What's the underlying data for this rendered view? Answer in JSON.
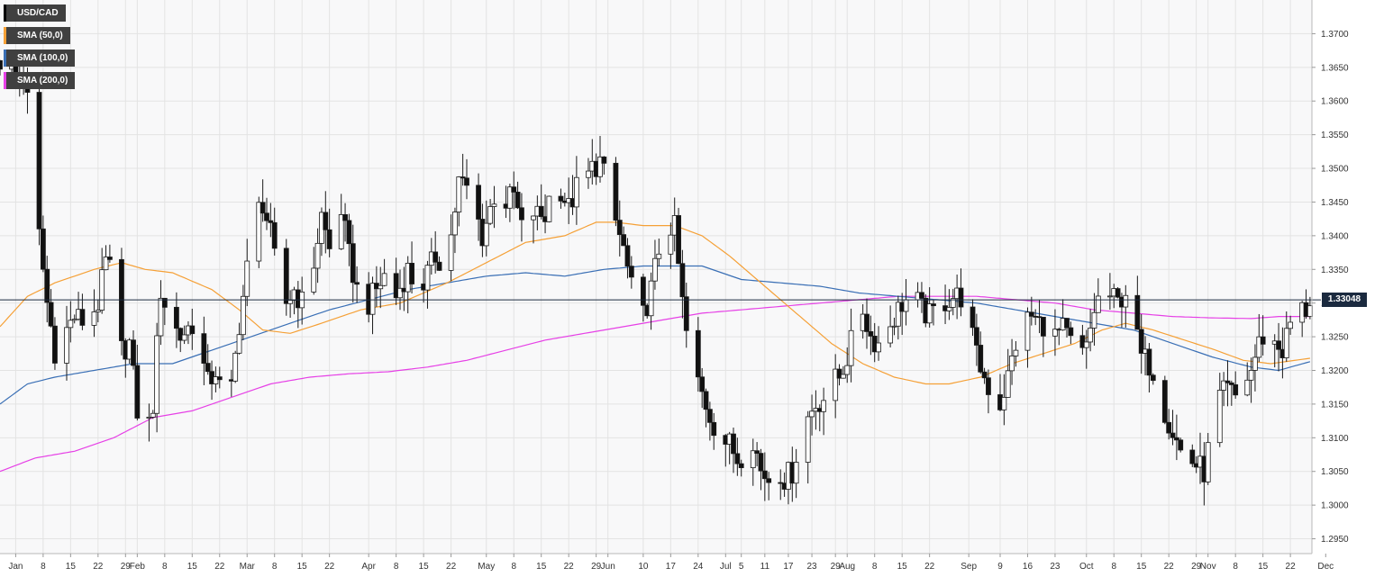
{
  "legend": [
    {
      "label": "USD/CAD",
      "color": "#000000"
    },
    {
      "label": "SMA (50,0)",
      "color": "#f5a036"
    },
    {
      "label": "SMA (100,0)",
      "color": "#3a6fb5"
    },
    {
      "label": "SMA (200,0)",
      "color": "#e640e6"
    }
  ],
  "last_price": "1.33048",
  "chart_data": {
    "type": "candlestick",
    "instrument": "USD/CAD",
    "y_ticks": [
      "1.2950",
      "1.3000",
      "1.3050",
      "1.3100",
      "1.3150",
      "1.3200",
      "1.3250",
      "1.3300",
      "1.3350",
      "1.3400",
      "1.3450",
      "1.3500",
      "1.3550",
      "1.3600",
      "1.3650",
      "1.3700"
    ],
    "x_ticks": [
      {
        "label": "Jan",
        "day": 0
      },
      {
        "label": "8",
        "day": 7
      },
      {
        "label": "15",
        "day": 14
      },
      {
        "label": "22",
        "day": 21
      },
      {
        "label": "29",
        "day": 28
      },
      {
        "label": "Feb",
        "day": 31
      },
      {
        "label": "8",
        "day": 38
      },
      {
        "label": "15",
        "day": 45
      },
      {
        "label": "22",
        "day": 52
      },
      {
        "label": "Mar",
        "day": 59
      },
      {
        "label": "8",
        "day": 66
      },
      {
        "label": "15",
        "day": 73
      },
      {
        "label": "22",
        "day": 80
      },
      {
        "label": "Apr",
        "day": 90
      },
      {
        "label": "8",
        "day": 97
      },
      {
        "label": "15",
        "day": 104
      },
      {
        "label": "22",
        "day": 111
      },
      {
        "label": "May",
        "day": 120
      },
      {
        "label": "8",
        "day": 127
      },
      {
        "label": "15",
        "day": 134
      },
      {
        "label": "22",
        "day": 141
      },
      {
        "label": "29",
        "day": 148
      },
      {
        "label": "Jun",
        "day": 151
      },
      {
        "label": "10",
        "day": 160
      },
      {
        "label": "17",
        "day": 167
      },
      {
        "label": "24",
        "day": 174
      },
      {
        "label": "Jul",
        "day": 181
      },
      {
        "label": "5",
        "day": 185
      },
      {
        "label": "11",
        "day": 191
      },
      {
        "label": "17",
        "day": 197
      },
      {
        "label": "23",
        "day": 203
      },
      {
        "label": "29",
        "day": 209
      },
      {
        "label": "Aug",
        "day": 212
      },
      {
        "label": "8",
        "day": 219
      },
      {
        "label": "15",
        "day": 226
      },
      {
        "label": "22",
        "day": 233
      },
      {
        "label": "Sep",
        "day": 243
      },
      {
        "label": "9",
        "day": 251
      },
      {
        "label": "16",
        "day": 258
      },
      {
        "label": "23",
        "day": 265
      },
      {
        "label": "Oct",
        "day": 273
      },
      {
        "label": "8",
        "day": 280
      },
      {
        "label": "15",
        "day": 287
      },
      {
        "label": "22",
        "day": 294
      },
      {
        "label": "29",
        "day": 301
      },
      {
        "label": "Nov",
        "day": 304
      },
      {
        "label": "8",
        "day": 311
      },
      {
        "label": "15",
        "day": 318
      },
      {
        "label": "22",
        "day": 325
      },
      {
        "label": "Dec",
        "day": 334
      }
    ],
    "y_range": [
      1.2928,
      1.375
    ],
    "x_range_days": [
      -4,
      336
    ],
    "price_line": 1.33048,
    "grid": true,
    "close_anchors": [
      [
        -4,
        1.366
      ],
      [
        0,
        1.364
      ],
      [
        2,
        1.364
      ],
      [
        4,
        1.356
      ],
      [
        6,
        1.34
      ],
      [
        8,
        1.33
      ],
      [
        10,
        1.323
      ],
      [
        12,
        1.325
      ],
      [
        15,
        1.328
      ],
      [
        18,
        1.327
      ],
      [
        21,
        1.33
      ],
      [
        23,
        1.336
      ],
      [
        25,
        1.334
      ],
      [
        27,
        1.323
      ],
      [
        29,
        1.324
      ],
      [
        31,
        1.314
      ],
      [
        33,
        1.309
      ],
      [
        35,
        1.315
      ],
      [
        37,
        1.332
      ],
      [
        39,
        1.328
      ],
      [
        42,
        1.325
      ],
      [
        45,
        1.327
      ],
      [
        47,
        1.323
      ],
      [
        49,
        1.318
      ],
      [
        51,
        1.32
      ],
      [
        53,
        1.315
      ],
      [
        55,
        1.317
      ],
      [
        57,
        1.327
      ],
      [
        59,
        1.335
      ],
      [
        61,
        1.343
      ],
      [
        63,
        1.345
      ],
      [
        65,
        1.34
      ],
      [
        67,
        1.333
      ],
      [
        69,
        1.33
      ],
      [
        71,
        1.332
      ],
      [
        73,
        1.33
      ],
      [
        76,
        1.336
      ],
      [
        78,
        1.343
      ],
      [
        80,
        1.338
      ],
      [
        83,
        1.344
      ],
      [
        85,
        1.337
      ],
      [
        87,
        1.332
      ],
      [
        90,
        1.33
      ],
      [
        92,
        1.332
      ],
      [
        95,
        1.335
      ],
      [
        97,
        1.331
      ],
      [
        100,
        1.335
      ],
      [
        102,
        1.332
      ],
      [
        104,
        1.333
      ],
      [
        107,
        1.337
      ],
      [
        109,
        1.336
      ],
      [
        111,
        1.34
      ],
      [
        113,
        1.348
      ],
      [
        115,
        1.347
      ],
      [
        117,
        1.344
      ],
      [
        119,
        1.34
      ],
      [
        121,
        1.344
      ],
      [
        123,
        1.348
      ],
      [
        125,
        1.345
      ],
      [
        127,
        1.346
      ],
      [
        129,
        1.341
      ],
      [
        131,
        1.344
      ],
      [
        133,
        1.343
      ],
      [
        135,
        1.343
      ],
      [
        137,
        1.348
      ],
      [
        139,
        1.347
      ],
      [
        141,
        1.344
      ],
      [
        143,
        1.347
      ],
      [
        145,
        1.348
      ],
      [
        147,
        1.35
      ],
      [
        149,
        1.351
      ],
      [
        151,
        1.347
      ],
      [
        153,
        1.342
      ],
      [
        155,
        1.338
      ],
      [
        157,
        1.332
      ],
      [
        159,
        1.329
      ],
      [
        160,
        1.328
      ],
      [
        162,
        1.332
      ],
      [
        164,
        1.338
      ],
      [
        166,
        1.342
      ],
      [
        168,
        1.341
      ],
      [
        170,
        1.33
      ],
      [
        172,
        1.321
      ],
      [
        174,
        1.318
      ],
      [
        176,
        1.315
      ],
      [
        178,
        1.312
      ],
      [
        180,
        1.31
      ],
      [
        182,
        1.309
      ],
      [
        184,
        1.307
      ],
      [
        186,
        1.308
      ],
      [
        188,
        1.31
      ],
      [
        190,
        1.305
      ],
      [
        192,
        1.304
      ],
      [
        194,
        1.306
      ],
      [
        196,
        1.304
      ],
      [
        198,
        1.305
      ],
      [
        200,
        1.31
      ],
      [
        202,
        1.313
      ],
      [
        204,
        1.315
      ],
      [
        206,
        1.316
      ],
      [
        208,
        1.318
      ],
      [
        210,
        1.319
      ],
      [
        212,
        1.322
      ],
      [
        214,
        1.326
      ],
      [
        216,
        1.329
      ],
      [
        218,
        1.325
      ],
      [
        220,
        1.324
      ],
      [
        222,
        1.326
      ],
      [
        224,
        1.328
      ],
      [
        226,
        1.33
      ],
      [
        229,
        1.331
      ],
      [
        231,
        1.329
      ],
      [
        233,
        1.328
      ],
      [
        236,
        1.33
      ],
      [
        239,
        1.331
      ],
      [
        241,
        1.331
      ],
      [
        243,
        1.328
      ],
      [
        245,
        1.322
      ],
      [
        247,
        1.319
      ],
      [
        249,
        1.316
      ],
      [
        251,
        1.315
      ],
      [
        253,
        1.319
      ],
      [
        255,
        1.324
      ],
      [
        257,
        1.327
      ],
      [
        259,
        1.328
      ],
      [
        261,
        1.327
      ],
      [
        263,
        1.327
      ],
      [
        265,
        1.325
      ],
      [
        267,
        1.326
      ],
      [
        269,
        1.324
      ],
      [
        271,
        1.322
      ],
      [
        273,
        1.323
      ],
      [
        275,
        1.329
      ],
      [
        277,
        1.332
      ],
      [
        279,
        1.331
      ],
      [
        281,
        1.33
      ],
      [
        283,
        1.332
      ],
      [
        285,
        1.327
      ],
      [
        287,
        1.322
      ],
      [
        289,
        1.321
      ],
      [
        291,
        1.319
      ],
      [
        293,
        1.314
      ],
      [
        295,
        1.311
      ],
      [
        297,
        1.308
      ],
      [
        299,
        1.307
      ],
      [
        301,
        1.306
      ],
      [
        303,
        1.305
      ],
      [
        305,
        1.311
      ],
      [
        307,
        1.316
      ],
      [
        309,
        1.317
      ],
      [
        311,
        1.316
      ],
      [
        313,
        1.318
      ],
      [
        315,
        1.32
      ],
      [
        317,
        1.324
      ],
      [
        319,
        1.326
      ],
      [
        321,
        1.324
      ],
      [
        323,
        1.323
      ],
      [
        325,
        1.327
      ],
      [
        327,
        1.329
      ],
      [
        329,
        1.329
      ],
      [
        330,
        1.3305
      ]
    ],
    "sma_50": [
      [
        -4,
        1.3265
      ],
      [
        3,
        1.331
      ],
      [
        10,
        1.333
      ],
      [
        20,
        1.335
      ],
      [
        27,
        1.336
      ],
      [
        33,
        1.335
      ],
      [
        40,
        1.3345
      ],
      [
        50,
        1.332
      ],
      [
        57,
        1.329
      ],
      [
        63,
        1.326
      ],
      [
        70,
        1.3255
      ],
      [
        78,
        1.327
      ],
      [
        88,
        1.329
      ],
      [
        98,
        1.33
      ],
      [
        110,
        1.333
      ],
      [
        120,
        1.336
      ],
      [
        130,
        1.339
      ],
      [
        140,
        1.34
      ],
      [
        148,
        1.342
      ],
      [
        153,
        1.342
      ],
      [
        160,
        1.3415
      ],
      [
        168,
        1.3415
      ],
      [
        175,
        1.34
      ],
      [
        182,
        1.337
      ],
      [
        190,
        1.333
      ],
      [
        198,
        1.329
      ],
      [
        208,
        1.324
      ],
      [
        216,
        1.321
      ],
      [
        224,
        1.319
      ],
      [
        232,
        1.318
      ],
      [
        238,
        1.318
      ],
      [
        246,
        1.319
      ],
      [
        254,
        1.321
      ],
      [
        262,
        1.3225
      ],
      [
        270,
        1.324
      ],
      [
        277,
        1.326
      ],
      [
        283,
        1.327
      ],
      [
        290,
        1.326
      ],
      [
        298,
        1.3245
      ],
      [
        306,
        1.323
      ],
      [
        313,
        1.3215
      ],
      [
        320,
        1.321
      ],
      [
        330,
        1.3218
      ]
    ],
    "sma_100": [
      [
        -4,
        1.315
      ],
      [
        3,
        1.318
      ],
      [
        10,
        1.319
      ],
      [
        20,
        1.32
      ],
      [
        30,
        1.321
      ],
      [
        40,
        1.321
      ],
      [
        50,
        1.323
      ],
      [
        60,
        1.325
      ],
      [
        70,
        1.327
      ],
      [
        80,
        1.329
      ],
      [
        90,
        1.3305
      ],
      [
        100,
        1.332
      ],
      [
        110,
        1.333
      ],
      [
        120,
        1.334
      ],
      [
        130,
        1.3345
      ],
      [
        140,
        1.334
      ],
      [
        150,
        1.335
      ],
      [
        160,
        1.3355
      ],
      [
        168,
        1.3355
      ],
      [
        175,
        1.3355
      ],
      [
        185,
        1.3335
      ],
      [
        195,
        1.333
      ],
      [
        205,
        1.3325
      ],
      [
        215,
        1.3315
      ],
      [
        225,
        1.331
      ],
      [
        235,
        1.3305
      ],
      [
        245,
        1.33
      ],
      [
        255,
        1.329
      ],
      [
        265,
        1.328
      ],
      [
        275,
        1.327
      ],
      [
        285,
        1.326
      ],
      [
        295,
        1.324
      ],
      [
        305,
        1.322
      ],
      [
        315,
        1.3205
      ],
      [
        322,
        1.32
      ],
      [
        330,
        1.3213
      ]
    ],
    "sma_200": [
      [
        -4,
        1.305
      ],
      [
        5,
        1.307
      ],
      [
        15,
        1.308
      ],
      [
        25,
        1.31
      ],
      [
        35,
        1.313
      ],
      [
        45,
        1.314
      ],
      [
        55,
        1.316
      ],
      [
        65,
        1.318
      ],
      [
        75,
        1.319
      ],
      [
        85,
        1.3195
      ],
      [
        95,
        1.3198
      ],
      [
        105,
        1.3205
      ],
      [
        115,
        1.3215
      ],
      [
        125,
        1.323
      ],
      [
        135,
        1.3245
      ],
      [
        145,
        1.3255
      ],
      [
        155,
        1.3265
      ],
      [
        165,
        1.3275
      ],
      [
        175,
        1.3285
      ],
      [
        185,
        1.329
      ],
      [
        195,
        1.3295
      ],
      [
        205,
        1.33
      ],
      [
        215,
        1.3305
      ],
      [
        225,
        1.331
      ],
      [
        235,
        1.331
      ],
      [
        245,
        1.331
      ],
      [
        255,
        1.3305
      ],
      [
        265,
        1.33
      ],
      [
        275,
        1.329
      ],
      [
        285,
        1.3285
      ],
      [
        295,
        1.328
      ],
      [
        305,
        1.3278
      ],
      [
        315,
        1.3277
      ],
      [
        322,
        1.328
      ],
      [
        330,
        1.328
      ]
    ]
  }
}
